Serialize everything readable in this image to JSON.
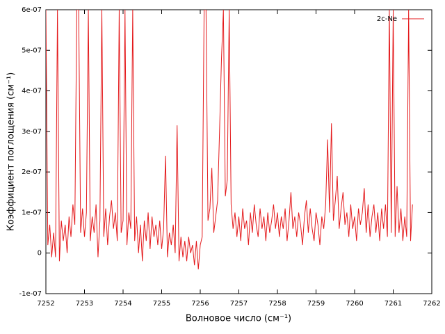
{
  "chart_data": {
    "type": "line",
    "x_label": "Волновое число (см⁻¹)",
    "y_label": "Коэффициент поглощения (см⁻¹)",
    "legend": "top-right",
    "xlim": [
      7252,
      7262
    ],
    "xticks": [
      7252,
      7253,
      7254,
      7255,
      7256,
      7257,
      7258,
      7259,
      7260,
      7261,
      7262
    ],
    "ylim": [
      -1e-07,
      6e-07
    ],
    "yticks": [
      {
        "value": -1e-07,
        "label": "-1e-07"
      },
      0,
      {
        "value": 1e-07,
        "label": "1e-07"
      },
      {
        "value": 2e-07,
        "label": "2e-07"
      },
      {
        "value": 3e-07,
        "label": "3e-07"
      },
      {
        "value": 4e-07,
        "label": "4e-07"
      },
      {
        "value": 5e-07,
        "label": "5e-07"
      },
      {
        "value": 6e-07,
        "label": "6e-07"
      }
    ],
    "x": [
      7252,
      7252.05,
      7252.1,
      7252.15,
      7252.2,
      7252.25,
      7252.3,
      7252.35,
      7252.4,
      7252.45,
      7252.5,
      7252.55,
      7252.6,
      7252.65,
      7252.7,
      7252.75,
      7252.8,
      7252.85,
      7252.9,
      7252.95,
      7253,
      7253.05,
      7253.1,
      7253.15,
      7253.2,
      7253.25,
      7253.3,
      7253.35,
      7253.4,
      7253.45,
      7253.5,
      7253.55,
      7253.6,
      7253.65,
      7253.7,
      7253.75,
      7253.8,
      7253.85,
      7253.9,
      7253.95,
      7254,
      7254.05,
      7254.1,
      7254.15,
      7254.2,
      7254.25,
      7254.3,
      7254.35,
      7254.4,
      7254.45,
      7254.5,
      7254.55,
      7254.6,
      7254.65,
      7254.7,
      7254.75,
      7254.8,
      7254.85,
      7254.9,
      7254.95,
      7255,
      7255.05,
      7255.1,
      7255.15,
      7255.2,
      7255.25,
      7255.3,
      7255.35,
      7255.4,
      7255.45,
      7255.5,
      7255.55,
      7255.6,
      7255.65,
      7255.7,
      7255.75,
      7255.8,
      7255.85,
      7255.9,
      7255.95,
      7256,
      7256.05,
      7256.1,
      7256.15,
      7256.2,
      7256.25,
      7256.3,
      7256.35,
      7256.4,
      7256.45,
      7256.5,
      7256.55,
      7256.6,
      7256.65,
      7256.7,
      7256.75,
      7256.8,
      7256.85,
      7256.9,
      7256.95,
      7257,
      7257.05,
      7257.1,
      7257.15,
      7257.2,
      7257.25,
      7257.3,
      7257.35,
      7257.4,
      7257.45,
      7257.5,
      7257.55,
      7257.6,
      7257.65,
      7257.7,
      7257.75,
      7257.8,
      7257.85,
      7257.9,
      7257.95,
      7258,
      7258.05,
      7258.1,
      7258.15,
      7258.2,
      7258.25,
      7258.3,
      7258.35,
      7258.4,
      7258.45,
      7258.5,
      7258.55,
      7258.6,
      7258.65,
      7258.7,
      7258.75,
      7258.8,
      7258.85,
      7258.9,
      7258.95,
      7259,
      7259.05,
      7259.1,
      7259.15,
      7259.2,
      7259.25,
      7259.3,
      7259.35,
      7259.4,
      7259.45,
      7259.5,
      7259.55,
      7259.6,
      7259.65,
      7259.7,
      7259.75,
      7259.8,
      7259.85,
      7259.9,
      7259.95,
      7260,
      7260.05,
      7260.1,
      7260.15,
      7260.2,
      7260.25,
      7260.3,
      7260.35,
      7260.4,
      7260.45,
      7260.5,
      7260.55,
      7260.6,
      7260.65,
      7260.7,
      7260.75,
      7260.8,
      7260.85,
      7260.9,
      7260.95,
      7261,
      7261.05,
      7261.1,
      7261.15,
      7261.2,
      7261.25,
      7261.3,
      7261.35,
      7261.4,
      7261.45,
      7261.5
    ],
    "series": [
      {
        "name": "2c-Ne",
        "color": "#e41a1c",
        "values": [
          6e-07,
          2e-08,
          7e-08,
          -1e-08,
          5e-08,
          -1e-08,
          6e-07,
          -2e-08,
          8e-08,
          3e-08,
          7e-08,
          0,
          9e-08,
          4e-08,
          1.2e-07,
          7e-08,
          6e-07,
          6e-07,
          5e-08,
          1.1e-07,
          4e-08,
          1e-07,
          6e-07,
          3e-08,
          9e-08,
          5e-08,
          1.2e-07,
          -1e-08,
          8e-08,
          6e-07,
          4e-08,
          1.1e-07,
          2e-08,
          9e-08,
          1.3e-07,
          6e-08,
          1e-07,
          3e-08,
          6e-07,
          5e-08,
          8e-08,
          6e-07,
          2e-08,
          1e-07,
          6e-08,
          6e-07,
          3e-08,
          9e-08,
          0,
          7e-08,
          -2e-08,
          8e-08,
          3e-08,
          1e-07,
          1e-08,
          9e-08,
          4e-08,
          7e-08,
          2e-08,
          8e-08,
          1e-08,
          6e-08,
          2.4e-07,
          -1e-08,
          5e-08,
          2e-08,
          7e-08,
          0,
          3.15e-07,
          -2e-08,
          4e-08,
          -1e-08,
          3e-08,
          -2e-08,
          4e-08,
          0,
          2e-08,
          -3e-08,
          3e-08,
          -4e-08,
          2e-08,
          4e-08,
          6e-07,
          6e-07,
          8e-08,
          1.1e-07,
          2.1e-07,
          5e-08,
          9e-08,
          1.3e-07,
          3e-07,
          4.8e-07,
          6e-07,
          1.4e-07,
          1.8e-07,
          6e-07,
          1.2e-07,
          6e-08,
          1e-07,
          4e-08,
          9e-08,
          3e-08,
          1.1e-07,
          6e-08,
          8e-08,
          2e-08,
          1e-07,
          5e-08,
          1.2e-07,
          7e-08,
          4e-08,
          1.1e-07,
          6e-08,
          9e-08,
          3e-08,
          1e-07,
          5e-08,
          8e-08,
          1.2e-07,
          6e-08,
          1e-07,
          4e-08,
          9e-08,
          6e-08,
          1.1e-07,
          3e-08,
          8e-08,
          1.5e-07,
          6e-08,
          9e-08,
          4e-08,
          1e-07,
          7e-08,
          2e-08,
          9e-08,
          1.3e-07,
          5e-08,
          1.1e-07,
          6e-08,
          3e-08,
          1e-07,
          7e-08,
          2e-08,
          9e-08,
          6e-08,
          1.2e-07,
          2.8e-07,
          1e-07,
          3.2e-07,
          8e-08,
          1.3e-07,
          1.9e-07,
          6e-08,
          1.1e-07,
          1.5e-07,
          7e-08,
          1e-07,
          4e-08,
          1.2e-07,
          6e-08,
          9e-08,
          3e-08,
          1.1e-07,
          7e-08,
          1e-07,
          1.6e-07,
          5e-08,
          1.2e-07,
          4e-08,
          9e-08,
          1.2e-07,
          5e-08,
          1e-07,
          3e-08,
          1.1e-07,
          6e-08,
          1.2e-07,
          4e-08,
          6e-07,
          5e-08,
          6e-07,
          4e-08,
          1.65e-07,
          5e-08,
          1.1e-07,
          3e-08,
          9e-08,
          4e-08,
          6e-07,
          3e-08,
          1.2e-07
        ]
      }
    ]
  }
}
